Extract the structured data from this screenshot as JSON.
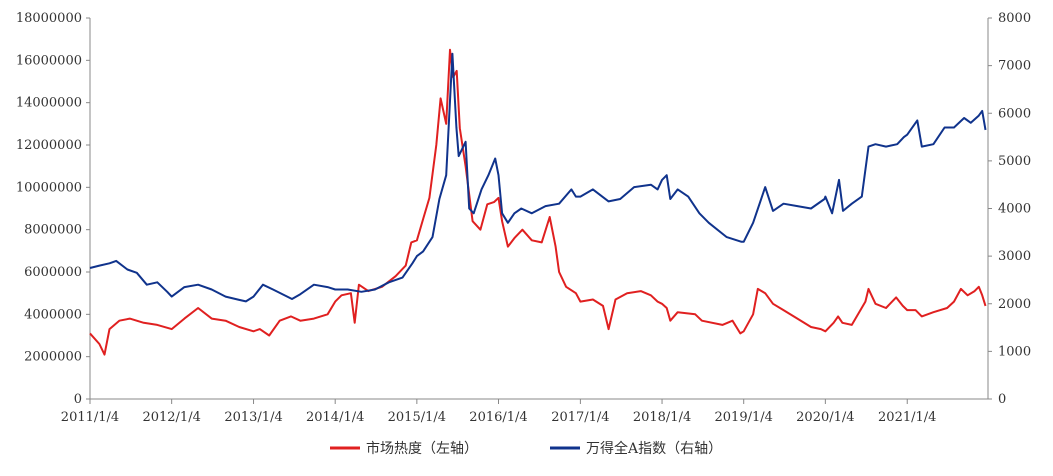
{
  "chart_data": {
    "type": "line",
    "x_labels": [
      "2011/1/4",
      "2012/1/4",
      "2013/1/4",
      "2014/1/4",
      "2015/1/4",
      "2016/1/4",
      "2017/1/4",
      "2018/1/4",
      "2019/1/4",
      "2020/1/4",
      "2021/1/4"
    ],
    "y_left": {
      "range": [
        0,
        18000000
      ],
      "ticks": [
        "0",
        "2000000",
        "4000000",
        "6000000",
        "8000000",
        "10000000",
        "12000000",
        "14000000",
        "16000000",
        "18000000"
      ]
    },
    "y_right": {
      "range": [
        0,
        8000
      ],
      "ticks": [
        "0",
        "1000",
        "2000",
        "3000",
        "4000",
        "5000",
        "6000",
        "7000",
        "8000"
      ]
    },
    "legend": {
      "placement": "bottom-center"
    },
    "series": [
      {
        "name": "市场热度（左轴）",
        "axis": "left",
        "color": "#e02020",
        "points": [
          [
            "2011/1/4",
            3100000
          ],
          [
            "2011/2/15",
            2600000
          ],
          [
            "2011/3/10",
            2100000
          ],
          [
            "2011/4/1",
            3300000
          ],
          [
            "2011/5/15",
            3700000
          ],
          [
            "2011/7/1",
            3800000
          ],
          [
            "2011/9/1",
            3600000
          ],
          [
            "2011/11/1",
            3500000
          ],
          [
            "2012/1/4",
            3300000
          ],
          [
            "2012/3/1",
            3800000
          ],
          [
            "2012/5/1",
            4300000
          ],
          [
            "2012/7/1",
            3800000
          ],
          [
            "2012/9/1",
            3700000
          ],
          [
            "2012/11/1",
            3400000
          ],
          [
            "2013/1/4",
            3200000
          ],
          [
            "2013/2/1",
            3300000
          ],
          [
            "2013/3/15",
            3000000
          ],
          [
            "2013/5/1",
            3700000
          ],
          [
            "2013/6/20",
            3900000
          ],
          [
            "2013/8/1",
            3700000
          ],
          [
            "2013/10/1",
            3800000
          ],
          [
            "2013/12/1",
            4000000
          ],
          [
            "2014/1/4",
            4600000
          ],
          [
            "2014/2/1",
            4900000
          ],
          [
            "2014/3/15",
            5000000
          ],
          [
            "2014/4/1",
            3600000
          ],
          [
            "2014/4/20",
            5400000
          ],
          [
            "2014/6/1",
            5100000
          ],
          [
            "2014/8/1",
            5300000
          ],
          [
            "2014/10/1",
            5800000
          ],
          [
            "2014/11/15",
            6300000
          ],
          [
            "2014/12/10",
            7400000
          ],
          [
            "2015/1/4",
            7500000
          ],
          [
            "2015/2/1",
            8500000
          ],
          [
            "2015/3/1",
            9500000
          ],
          [
            "2015/4/1",
            12000000
          ],
          [
            "2015/4/20",
            14200000
          ],
          [
            "2015/5/15",
            13000000
          ],
          [
            "2015/6/1",
            16500000
          ],
          [
            "2015/6/15",
            15200000
          ],
          [
            "2015/7/1",
            15500000
          ],
          [
            "2015/7/15",
            12800000
          ],
          [
            "2015/8/10",
            11000000
          ],
          [
            "2015/9/10",
            8400000
          ],
          [
            "2015/10/15",
            8000000
          ],
          [
            "2015/11/15",
            9200000
          ],
          [
            "2015/12/15",
            9300000
          ],
          [
            "2016/1/4",
            9500000
          ],
          [
            "2016/1/20",
            8400000
          ],
          [
            "2016/2/15",
            7200000
          ],
          [
            "2016/3/15",
            7600000
          ],
          [
            "2016/4/20",
            8000000
          ],
          [
            "2016/6/1",
            7500000
          ],
          [
            "2016/7/15",
            7400000
          ],
          [
            "2016/8/20",
            8600000
          ],
          [
            "2016/9/15",
            7200000
          ],
          [
            "2016/10/1",
            6000000
          ],
          [
            "2016/11/1",
            5300000
          ],
          [
            "2016/12/15",
            5000000
          ],
          [
            "2017/1/4",
            4600000
          ],
          [
            "2017/3/1",
            4700000
          ],
          [
            "2017/4/15",
            4400000
          ],
          [
            "2017/5/10",
            3300000
          ],
          [
            "2017/6/10",
            4700000
          ],
          [
            "2017/8/1",
            5000000
          ],
          [
            "2017/10/1",
            5100000
          ],
          [
            "2017/11/15",
            4900000
          ],
          [
            "2017/12/15",
            4600000
          ],
          [
            "2018/1/4",
            4500000
          ],
          [
            "2018/1/25",
            4300000
          ],
          [
            "2018/2/10",
            3700000
          ],
          [
            "2018/3/15",
            4100000
          ],
          [
            "2018/6/1",
            4000000
          ],
          [
            "2018/7/1",
            3700000
          ],
          [
            "2018/10/1",
            3500000
          ],
          [
            "2018/11/15",
            3700000
          ],
          [
            "2018/12/20",
            3100000
          ],
          [
            "2019/1/4",
            3200000
          ],
          [
            "2019/2/15",
            4000000
          ],
          [
            "2019/3/8",
            5200000
          ],
          [
            "2019/4/10",
            5000000
          ],
          [
            "2019/5/15",
            4500000
          ],
          [
            "2019/7/1",
            4200000
          ],
          [
            "2019/9/1",
            3800000
          ],
          [
            "2019/11/1",
            3400000
          ],
          [
            "2019/12/15",
            3300000
          ],
          [
            "2020/1/4",
            3200000
          ],
          [
            "2020/2/10",
            3600000
          ],
          [
            "2020/3/1",
            3900000
          ],
          [
            "2020/3/20",
            3600000
          ],
          [
            "2020/5/1",
            3500000
          ],
          [
            "2020/7/1",
            4600000
          ],
          [
            "2020/7/15",
            5200000
          ],
          [
            "2020/8/15",
            4500000
          ],
          [
            "2020/10/1",
            4300000
          ],
          [
            "2020/11/15",
            4800000
          ],
          [
            "2020/12/15",
            4400000
          ],
          [
            "2021/1/4",
            4200000
          ],
          [
            "2021/2/10",
            4200000
          ],
          [
            "2021/3/10",
            3900000
          ],
          [
            "2021/5/1",
            4100000
          ],
          [
            "2021/7/1",
            4300000
          ],
          [
            "2021/8/1",
            4600000
          ],
          [
            "2021/9/1",
            5200000
          ],
          [
            "2021/10/1",
            4900000
          ],
          [
            "2021/11/1",
            5100000
          ],
          [
            "2021/11/20",
            5300000
          ],
          [
            "2021/12/5",
            4900000
          ],
          [
            "2021/12/20",
            4400000
          ]
        ]
      },
      {
        "name": "万得全A指数（右轴）",
        "axis": "right",
        "color": "#10338c",
        "points": [
          [
            "2011/1/4",
            2750
          ],
          [
            "2011/2/15",
            2800
          ],
          [
            "2011/4/1",
            2850
          ],
          [
            "2011/5/1",
            2900
          ],
          [
            "2011/6/20",
            2720
          ],
          [
            "2011/8/1",
            2650
          ],
          [
            "2011/9/15",
            2400
          ],
          [
            "2011/11/1",
            2450
          ],
          [
            "2011/12/15",
            2250
          ],
          [
            "2012/1/4",
            2150
          ],
          [
            "2012/3/1",
            2350
          ],
          [
            "2012/5/1",
            2400
          ],
          [
            "2012/7/1",
            2300
          ],
          [
            "2012/9/1",
            2150
          ],
          [
            "2012/11/1",
            2080
          ],
          [
            "2012/12/1",
            2050
          ],
          [
            "2013/1/4",
            2150
          ],
          [
            "2013/2/15",
            2400
          ],
          [
            "2013/4/1",
            2300
          ],
          [
            "2013/6/25",
            2100
          ],
          [
            "2013/8/1",
            2200
          ],
          [
            "2013/10/1",
            2400
          ],
          [
            "2013/12/1",
            2350
          ],
          [
            "2014/1/4",
            2300
          ],
          [
            "2014/3/1",
            2300
          ],
          [
            "2014/5/1",
            2250
          ],
          [
            "2014/7/1",
            2300
          ],
          [
            "2014/9/1",
            2450
          ],
          [
            "2014/11/1",
            2550
          ],
          [
            "2014/12/15",
            2850
          ],
          [
            "2015/1/4",
            3000
          ],
          [
            "2015/2/1",
            3100
          ],
          [
            "2015/3/15",
            3400
          ],
          [
            "2015/4/15",
            4200
          ],
          [
            "2015/5/15",
            4700
          ],
          [
            "2015/6/12",
            7250
          ],
          [
            "2015/6/30",
            5700
          ],
          [
            "2015/7/10",
            5100
          ],
          [
            "2015/8/10",
            5400
          ],
          [
            "2015/8/26",
            4000
          ],
          [
            "2015/9/15",
            3900
          ],
          [
            "2015/10/20",
            4400
          ],
          [
            "2015/11/20",
            4700
          ],
          [
            "2015/12/20",
            5050
          ],
          [
            "2016/1/4",
            4700
          ],
          [
            "2016/1/20",
            3900
          ],
          [
            "2016/2/15",
            3700
          ],
          [
            "2016/3/15",
            3900
          ],
          [
            "2016/4/15",
            4000
          ],
          [
            "2016/6/1",
            3900
          ],
          [
            "2016/8/1",
            4050
          ],
          [
            "2016/10/1",
            4100
          ],
          [
            "2016/11/25",
            4400
          ],
          [
            "2016/12/15",
            4250
          ],
          [
            "2017/1/4",
            4250
          ],
          [
            "2017/3/1",
            4400
          ],
          [
            "2017/5/10",
            4150
          ],
          [
            "2017/7/1",
            4200
          ],
          [
            "2017/9/1",
            4450
          ],
          [
            "2017/11/15",
            4500
          ],
          [
            "2017/12/15",
            4400
          ],
          [
            "2018/1/4",
            4600
          ],
          [
            "2018/1/25",
            4700
          ],
          [
            "2018/2/10",
            4200
          ],
          [
            "2018/3/15",
            4400
          ],
          [
            "2018/5/1",
            4250
          ],
          [
            "2018/6/20",
            3900
          ],
          [
            "2018/8/1",
            3700
          ],
          [
            "2018/10/20",
            3400
          ],
          [
            "2018/12/25",
            3300
          ],
          [
            "2019/1/4",
            3300
          ],
          [
            "2019/2/15",
            3700
          ],
          [
            "2019/4/10",
            4450
          ],
          [
            "2019/5/15",
            3950
          ],
          [
            "2019/7/1",
            4100
          ],
          [
            "2019/9/1",
            4050
          ],
          [
            "2019/11/1",
            4000
          ],
          [
            "2019/12/31",
            4200
          ],
          [
            "2020/1/4",
            4250
          ],
          [
            "2020/2/3",
            3900
          ],
          [
            "2020/3/5",
            4600
          ],
          [
            "2020/3/23",
            3950
          ],
          [
            "2020/5/1",
            4100
          ],
          [
            "2020/6/15",
            4250
          ],
          [
            "2020/7/15",
            5300
          ],
          [
            "2020/8/15",
            5350
          ],
          [
            "2020/10/1",
            5300
          ],
          [
            "2020/11/20",
            5350
          ],
          [
            "2020/12/20",
            5500
          ],
          [
            "2021/1/4",
            5550
          ],
          [
            "2021/2/18",
            5850
          ],
          [
            "2021/3/10",
            5300
          ],
          [
            "2021/5/1",
            5350
          ],
          [
            "2021/6/20",
            5700
          ],
          [
            "2021/8/1",
            5700
          ],
          [
            "2021/9/15",
            5900
          ],
          [
            "2021/10/15",
            5800
          ],
          [
            "2021/11/20",
            5950
          ],
          [
            "2021/12/5",
            6050
          ],
          [
            "2021/12/20",
            5650
          ]
        ]
      }
    ]
  }
}
